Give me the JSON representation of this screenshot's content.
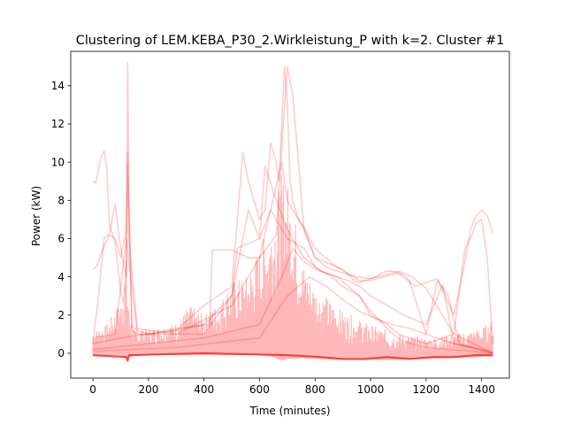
{
  "chart_data": {
    "type": "line",
    "title": "Clustering of LEM.KEBA_P30_2.Wirkleistung_P with k=2. Cluster #1",
    "xlabel": "Time (minutes)",
    "ylabel": "Power (kW)",
    "xlim": [
      -80,
      1500
    ],
    "ylim": [
      -1.3,
      15.8
    ],
    "xticks": [
      0,
      200,
      400,
      600,
      800,
      1000,
      1200,
      1400
    ],
    "yticks": [
      0,
      2,
      4,
      6,
      8,
      10,
      12,
      14
    ],
    "xtick_labels": [
      "0",
      "200",
      "400",
      "600",
      "800",
      "1000",
      "1200",
      "1400"
    ],
    "ytick_labels": [
      "0",
      "2",
      "4",
      "6",
      "8",
      "10",
      "12",
      "14"
    ],
    "grid": false,
    "legend": "none",
    "color": "#ff0000",
    "series_opacity": 0.2,
    "series": [
      {
        "x": [
          0,
          10,
          20,
          30,
          40,
          50,
          55,
          60,
          80,
          100,
          110,
          120,
          125,
          130,
          140,
          160,
          200,
          300,
          420,
          430,
          500,
          560,
          600,
          640,
          660,
          690,
          700,
          720,
          760,
          800,
          840,
          880,
          900,
          950,
          1000,
          1050,
          1100,
          1150,
          1200,
          1300,
          1440
        ],
        "y": [
          9.0,
          8.9,
          9.6,
          10.3,
          10.6,
          9.7,
          8.0,
          6.7,
          5.8,
          3.2,
          2.6,
          4.5,
          15.2,
          8.0,
          1.2,
          1.0,
          1.0,
          1.3,
          1.5,
          5.4,
          5.4,
          5.0,
          5.0,
          5.8,
          6.2,
          13.0,
          15.0,
          13.5,
          6.5,
          5.0,
          4.5,
          4.3,
          4.2,
          4.0,
          3.9,
          4.1,
          4.3,
          4.0,
          3.4,
          1.0,
          0.0
        ]
      },
      {
        "x": [
          0,
          10,
          20,
          30,
          40,
          60,
          80,
          100,
          120,
          125,
          130,
          140,
          160,
          200,
          300,
          400,
          500,
          540,
          560,
          580,
          600,
          620,
          640,
          660,
          670,
          690,
          700,
          710,
          720,
          740,
          760,
          780,
          800,
          820,
          840,
          860,
          880,
          900,
          920,
          940,
          960,
          980,
          1000,
          1020,
          1040,
          1060,
          1080,
          1100,
          1120,
          1140,
          1200,
          1300,
          1440
        ],
        "y": [
          4.4,
          4.5,
          4.8,
          5.2,
          5.6,
          6.2,
          6.0,
          5.0,
          6.5,
          10.0,
          7.0,
          1.4,
          1.2,
          1.0,
          1.2,
          2.5,
          3.5,
          10.5,
          9.0,
          8.0,
          7.0,
          7.5,
          11.0,
          10.0,
          9.0,
          15.0,
          13.0,
          9.0,
          8.0,
          7.0,
          6.6,
          6.0,
          5.5,
          5.2,
          5.0,
          4.7,
          4.5,
          4.4,
          4.1,
          3.8,
          3.7,
          3.8,
          3.9,
          4.0,
          4.2,
          4.3,
          4.3,
          4.2,
          4.1,
          3.8,
          1.0,
          0.5,
          0.0
        ]
      },
      {
        "x": [
          0,
          20,
          40,
          60,
          80,
          100,
          120,
          125,
          130,
          160,
          300,
          500,
          600,
          640,
          680,
          700,
          760,
          800,
          880,
          960,
          1000,
          1100,
          1160,
          1240,
          1300,
          1340,
          1360,
          1380,
          1400,
          1420,
          1440
        ],
        "y": [
          0.5,
          3.0,
          6.0,
          6.3,
          7.8,
          5.5,
          4.0,
          10.5,
          6.0,
          1.3,
          1.0,
          2.5,
          5.0,
          7.5,
          10.0,
          8.0,
          6.5,
          5.0,
          4.5,
          3.8,
          3.8,
          4.2,
          3.5,
          3.9,
          2.0,
          4.8,
          6.5,
          7.2,
          7.5,
          7.2,
          6.3
        ]
      },
      {
        "x": [
          0,
          80,
          120,
          160,
          400,
          500,
          520,
          600,
          640,
          700,
          760,
          800,
          860,
          900,
          960,
          1000,
          1060,
          1100,
          1200,
          1300,
          1340,
          1360,
          1380,
          1400,
          1420,
          1440
        ],
        "y": [
          0.8,
          1.0,
          6.0,
          1.0,
          1.0,
          3.0,
          5.5,
          6.0,
          7.5,
          6.0,
          5.5,
          4.5,
          4.0,
          3.5,
          3.0,
          2.0,
          1.5,
          1.0,
          0.5,
          1.0,
          5.5,
          6.0,
          6.8,
          7.0,
          5.0,
          0.5
        ]
      },
      {
        "x": [
          0,
          100,
          200,
          300,
          400,
          500,
          560,
          600,
          620,
          660,
          700,
          760,
          820,
          880,
          920,
          960,
          1000,
          1040,
          1080,
          1120,
          1200,
          1440
        ],
        "y": [
          0.5,
          0.8,
          1.0,
          1.2,
          1.5,
          3.0,
          7.5,
          6.0,
          9.8,
          8.0,
          6.5,
          5.0,
          4.3,
          4.0,
          3.5,
          3.0,
          2.2,
          1.6,
          1.0,
          0.6,
          0.3,
          0.0
        ]
      },
      {
        "x": [
          0,
          200,
          400,
          600,
          680,
          720,
          760,
          800,
          840,
          880,
          920,
          960,
          1000,
          1060,
          1120,
          1200,
          1260,
          1300,
          1440
        ],
        "y": [
          0.2,
          0.5,
          0.8,
          1.5,
          4.0,
          5.5,
          4.8,
          4.4,
          4.2,
          4.0,
          3.8,
          3.5,
          3.0,
          2.5,
          2.0,
          1.5,
          3.6,
          0.5,
          0.1
        ]
      },
      {
        "x": [
          0,
          300,
          600,
          700,
          780,
          840,
          900,
          960,
          1020,
          1080,
          1140,
          1200,
          1240,
          1280,
          1320,
          1440
        ],
        "y": [
          0.1,
          0.3,
          0.8,
          3.0,
          4.0,
          3.5,
          2.8,
          2.2,
          1.8,
          1.5,
          1.3,
          1.0,
          3.8,
          3.0,
          0.5,
          0.0
        ]
      },
      {
        "x": [
          0,
          120,
          125,
          130,
          400,
          700,
          820,
          900,
          980,
          1060,
          1140,
          1220,
          1300,
          1380,
          1440
        ],
        "y": [
          -0.1,
          -0.2,
          -0.4,
          -0.1,
          0.0,
          -0.1,
          -0.2,
          -0.3,
          -0.3,
          -0.2,
          -0.3,
          -0.2,
          -0.2,
          -0.1,
          -0.1
        ]
      }
    ],
    "band": {
      "x": [
        0,
        50,
        100,
        120,
        130,
        150,
        200,
        300,
        350,
        400,
        450,
        500,
        550,
        600,
        650,
        680,
        700,
        720,
        750,
        800,
        900,
        1000,
        1100,
        1200,
        1300,
        1400,
        1440
      ],
      "y_low": [
        -0.15,
        -0.15,
        -0.15,
        -0.3,
        -0.2,
        -0.15,
        -0.1,
        -0.1,
        -0.1,
        -0.1,
        -0.1,
        -0.1,
        -0.1,
        -0.1,
        -0.2,
        -0.4,
        -0.3,
        -0.3,
        -0.25,
        -0.3,
        -0.35,
        -0.35,
        -0.35,
        -0.3,
        -0.25,
        -0.2,
        -0.15
      ],
      "y_high": [
        1.2,
        1.5,
        2.8,
        5.0,
        2.5,
        1.2,
        1.3,
        1.6,
        2.5,
        2.0,
        2.6,
        3.8,
        4.0,
        5.5,
        7.5,
        9.5,
        9.0,
        8.0,
        5.0,
        3.5,
        2.2,
        1.5,
        1.0,
        0.8,
        1.0,
        1.3,
        1.8
      ]
    }
  }
}
